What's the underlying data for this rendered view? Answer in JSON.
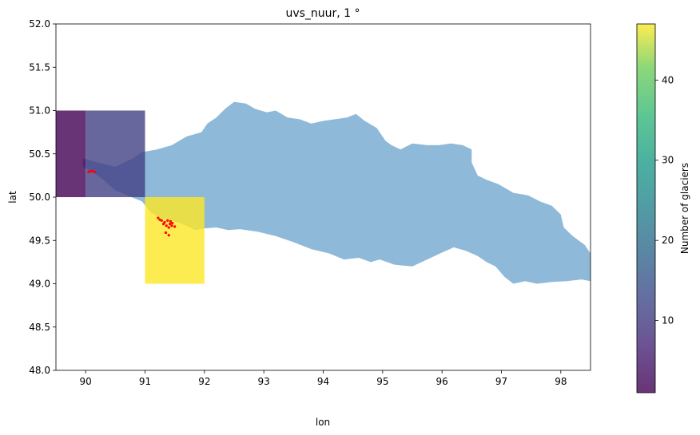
{
  "chart_data": {
    "type": "heatmap",
    "title": "uvs_nuur, 1 °",
    "xlabel": "lon",
    "ylabel": "lat",
    "xlim": [
      89.5,
      98.5
    ],
    "ylim": [
      48.0,
      52.0
    ],
    "xticks": [
      "90",
      "91",
      "92",
      "93",
      "94",
      "95",
      "96",
      "97",
      "98"
    ],
    "yticks": [
      "48.0",
      "48.5",
      "49.0",
      "49.5",
      "50.0",
      "50.5",
      "51.0",
      "51.5",
      "52.0"
    ],
    "grid": false,
    "cells": [
      {
        "lon_min": 89.5,
        "lon_max": 90.0,
        "lat_min": 50.0,
        "lat_max": 51.0,
        "glaciers": 1
      },
      {
        "lon_min": 90.0,
        "lon_max": 91.0,
        "lat_min": 50.0,
        "lat_max": 51.0,
        "glaciers": 11
      },
      {
        "lon_min": 91.0,
        "lon_max": 92.0,
        "lat_min": 49.0,
        "lat_max": 50.0,
        "glaciers": 47
      }
    ],
    "colorbar": {
      "label": "Number of glaciers",
      "min": 1,
      "max": 47,
      "ticks": [
        "10",
        "20",
        "30",
        "40"
      ],
      "colormap": "viridis"
    },
    "basin": {
      "fill": "#8fb9d8",
      "outline_lonlat": [
        [
          89.95,
          50.45
        ],
        [
          90.2,
          50.4
        ],
        [
          90.5,
          50.35
        ],
        [
          90.8,
          50.45
        ],
        [
          90.95,
          50.52
        ],
        [
          91.2,
          50.55
        ],
        [
          91.45,
          50.6
        ],
        [
          91.7,
          50.7
        ],
        [
          91.95,
          50.75
        ],
        [
          92.05,
          50.85
        ],
        [
          92.2,
          50.92
        ],
        [
          92.35,
          51.02
        ],
        [
          92.5,
          51.1
        ],
        [
          92.7,
          51.08
        ],
        [
          92.85,
          51.02
        ],
        [
          93.05,
          50.98
        ],
        [
          93.2,
          51.0
        ],
        [
          93.4,
          50.92
        ],
        [
          93.6,
          50.9
        ],
        [
          93.8,
          50.85
        ],
        [
          94.0,
          50.88
        ],
        [
          94.2,
          50.9
        ],
        [
          94.4,
          50.92
        ],
        [
          94.55,
          50.96
        ],
        [
          94.7,
          50.88
        ],
        [
          94.9,
          50.8
        ],
        [
          95.05,
          50.65
        ],
        [
          95.15,
          50.6
        ],
        [
          95.3,
          50.55
        ],
        [
          95.5,
          50.62
        ],
        [
          95.75,
          50.6
        ],
        [
          95.95,
          50.6
        ],
        [
          96.15,
          50.62
        ],
        [
          96.35,
          50.6
        ],
        [
          96.5,
          50.55
        ],
        [
          96.5,
          50.4
        ],
        [
          96.6,
          50.25
        ],
        [
          96.75,
          50.2
        ],
        [
          96.95,
          50.15
        ],
        [
          97.2,
          50.05
        ],
        [
          97.45,
          50.02
        ],
        [
          97.65,
          49.95
        ],
        [
          97.85,
          49.9
        ],
        [
          98.0,
          49.8
        ],
        [
          98.05,
          49.65
        ],
        [
          98.2,
          49.55
        ],
        [
          98.4,
          49.45
        ],
        [
          98.5,
          49.35
        ],
        [
          98.5,
          49.03
        ],
        [
          98.35,
          49.05
        ],
        [
          98.1,
          49.03
        ],
        [
          97.85,
          49.02
        ],
        [
          97.6,
          49.0
        ],
        [
          97.4,
          49.03
        ],
        [
          97.2,
          49.0
        ],
        [
          97.05,
          49.08
        ],
        [
          96.9,
          49.2
        ],
        [
          96.75,
          49.25
        ],
        [
          96.6,
          49.32
        ],
        [
          96.4,
          49.38
        ],
        [
          96.2,
          49.42
        ],
        [
          96.0,
          49.36
        ],
        [
          95.75,
          49.28
        ],
        [
          95.5,
          49.2
        ],
        [
          95.2,
          49.22
        ],
        [
          94.95,
          49.28
        ],
        [
          94.8,
          49.25
        ],
        [
          94.6,
          49.3
        ],
        [
          94.35,
          49.28
        ],
        [
          94.1,
          49.35
        ],
        [
          93.8,
          49.4
        ],
        [
          93.5,
          49.48
        ],
        [
          93.2,
          49.55
        ],
        [
          92.9,
          49.6
        ],
        [
          92.6,
          49.63
        ],
        [
          92.4,
          49.62
        ],
        [
          92.2,
          49.65
        ],
        [
          92.0,
          49.64
        ],
        [
          91.85,
          49.62
        ],
        [
          91.6,
          49.7
        ],
        [
          91.3,
          49.75
        ],
        [
          91.1,
          49.82
        ],
        [
          90.95,
          49.95
        ],
        [
          90.7,
          50.02
        ],
        [
          90.5,
          50.08
        ],
        [
          90.3,
          50.2
        ],
        [
          90.1,
          50.3
        ],
        [
          89.95,
          50.35
        ]
      ]
    },
    "glacier_points": [
      [
        90.05,
        50.29
      ],
      [
        90.08,
        50.3
      ],
      [
        90.12,
        50.3
      ],
      [
        90.15,
        50.29
      ],
      [
        91.22,
        49.76
      ],
      [
        91.28,
        49.73
      ],
      [
        91.33,
        49.71
      ],
      [
        91.38,
        49.73
      ],
      [
        91.42,
        49.69
      ],
      [
        91.45,
        49.67
      ],
      [
        91.5,
        49.66
      ],
      [
        91.36,
        49.67
      ],
      [
        91.4,
        49.65
      ],
      [
        91.31,
        49.69
      ],
      [
        91.46,
        49.7
      ],
      [
        91.35,
        49.59
      ],
      [
        91.4,
        49.56
      ],
      [
        91.25,
        49.74
      ],
      [
        91.43,
        49.72
      ]
    ]
  }
}
